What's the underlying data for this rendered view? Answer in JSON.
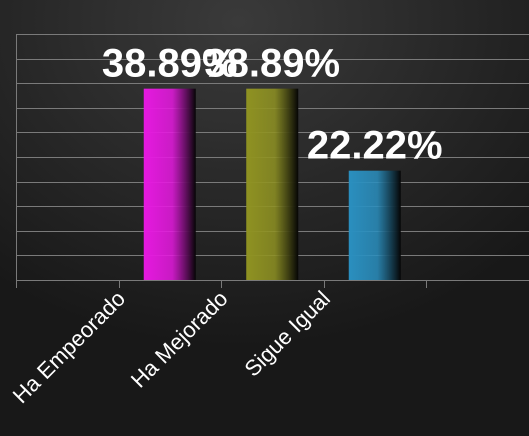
{
  "chart_data": {
    "type": "bar",
    "categories": [
      "Ha Empeorado",
      "Ha Mejorado",
      "Sigue Igual"
    ],
    "values": [
      38.89,
      38.89,
      22.22
    ],
    "data_labels": [
      "38.89%",
      "38.89%",
      "22.22%"
    ],
    "ylim": [
      0,
      50
    ],
    "grid": true,
    "legend": "none",
    "colors": {
      "background": "#1c1c1c",
      "grid": "#7a7a7a",
      "text": "#ffffff",
      "bars": [
        "#e619e0",
        "#8f9222",
        "#2a8fbf"
      ]
    }
  }
}
